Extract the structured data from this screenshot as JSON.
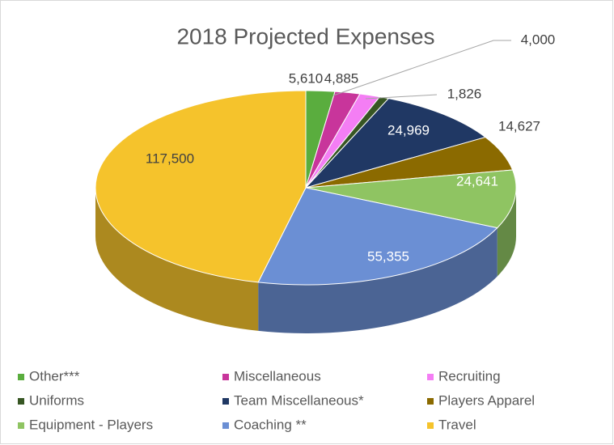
{
  "chart_data": {
    "type": "pie",
    "title": "2018 Projected Expenses",
    "categories": [
      "Other***",
      "Miscellaneous",
      "Recruiting",
      "Uniforms",
      "Team Miscellaneous*",
      "Players Apparel",
      "Equipment - Players",
      "Coaching **",
      "Travel"
    ],
    "values": [
      5610,
      4885,
      4000,
      1826,
      24969,
      14627,
      24641,
      55355,
      117500
    ],
    "value_labels": [
      "5,610",
      "4,885",
      "4,000",
      "1,826",
      "24,969",
      "14,627",
      "24,641",
      "55,355",
      "117,500"
    ],
    "colors": [
      "#5aad3e",
      "#c8359b",
      "#f47ef4",
      "#375623",
      "#203864",
      "#8b6a00",
      "#8fc462",
      "#6b8fd4",
      "#f5c32c"
    ],
    "legend": "bottom"
  }
}
